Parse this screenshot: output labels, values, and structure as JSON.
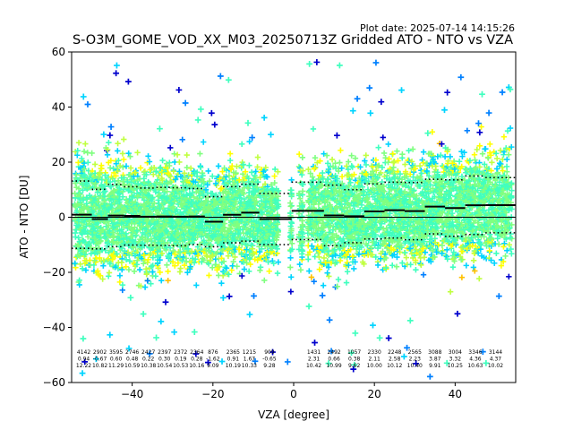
{
  "plot_date": "Plot date: 2025-07-14 14:15:26",
  "chart_data": {
    "type": "scatter",
    "title": "S-O3M_GOME_VOD_XX_M03_20250713Z Gridded ATO - NTO vs VZA",
    "xlabel": "VZA [degree]",
    "ylabel": "ATO - NTO [DU]",
    "xlim": [
      -55,
      55
    ],
    "ylim": [
      -60,
      60
    ],
    "xticks": [
      -40,
      -20,
      0,
      20,
      40
    ],
    "yticks": [
      -60,
      -40,
      -20,
      0,
      20,
      40,
      60
    ],
    "grid": false,
    "legend": "none",
    "marker": "+",
    "colormap": [
      "#0000cd",
      "#0080ff",
      "#00d4ff",
      "#40ffbf",
      "#80ff80",
      "#c0ff40",
      "#ffff00",
      "#ffc000"
    ],
    "zero_line": 0,
    "bins": [
      {
        "vza": -52,
        "count": "4142",
        "mean": "0.94",
        "std": "12.22"
      },
      {
        "vza": -48,
        "count": "2902",
        "mean": "-0.67",
        "std": "10.82"
      },
      {
        "vza": -44,
        "count": "3595",
        "mean": "0.60",
        "std": "11.29"
      },
      {
        "vza": -40,
        "count": "2746",
        "mean": "0.48",
        "std": "10.59"
      },
      {
        "vza": -36,
        "count": "2427",
        "mean": "0.22",
        "std": "10.38"
      },
      {
        "vza": -32,
        "count": "2397",
        "mean": "0.30",
        "std": "10.54"
      },
      {
        "vza": -28,
        "count": "2372",
        "mean": "0.19",
        "std": "10.53"
      },
      {
        "vza": -24,
        "count": "2364",
        "mean": "0.28",
        "std": "10.16"
      },
      {
        "vza": -20,
        "count": "876",
        "mean": "-1.62",
        "std": "9.09"
      },
      {
        "vza": -15,
        "count": "2365",
        "mean": "0.91",
        "std": "10.19"
      },
      {
        "vza": -11,
        "count": "1215",
        "mean": "1.67",
        "std": "10.33"
      },
      {
        "vza": -6,
        "count": "909",
        "mean": "-0.65",
        "std": "9.28"
      },
      {
        "vza": 5,
        "count": "1431",
        "mean": "2.31",
        "std": "10.42"
      },
      {
        "vza": 10,
        "count": "2492",
        "mean": "0.66",
        "std": "10.99"
      },
      {
        "vza": 15,
        "count": "1057",
        "mean": "0.38",
        "std": "9.62"
      },
      {
        "vza": 20,
        "count": "2330",
        "mean": "2.11",
        "std": "10.00"
      },
      {
        "vza": 25,
        "count": "2248",
        "mean": "2.58",
        "std": "10.12"
      },
      {
        "vza": 30,
        "count": "2565",
        "mean": "2.23",
        "std": "10.40"
      },
      {
        "vza": 35,
        "count": "3088",
        "mean": "3.87",
        "std": "9.91"
      },
      {
        "vza": 40,
        "count": "3004",
        "mean": "3.32",
        "std": "10.25"
      },
      {
        "vza": 45,
        "count": "3346",
        "mean": "4.36",
        "std": "10.63"
      },
      {
        "vza": 50,
        "count": "3144",
        "mean": "4.37",
        "std": "10.02"
      }
    ]
  }
}
